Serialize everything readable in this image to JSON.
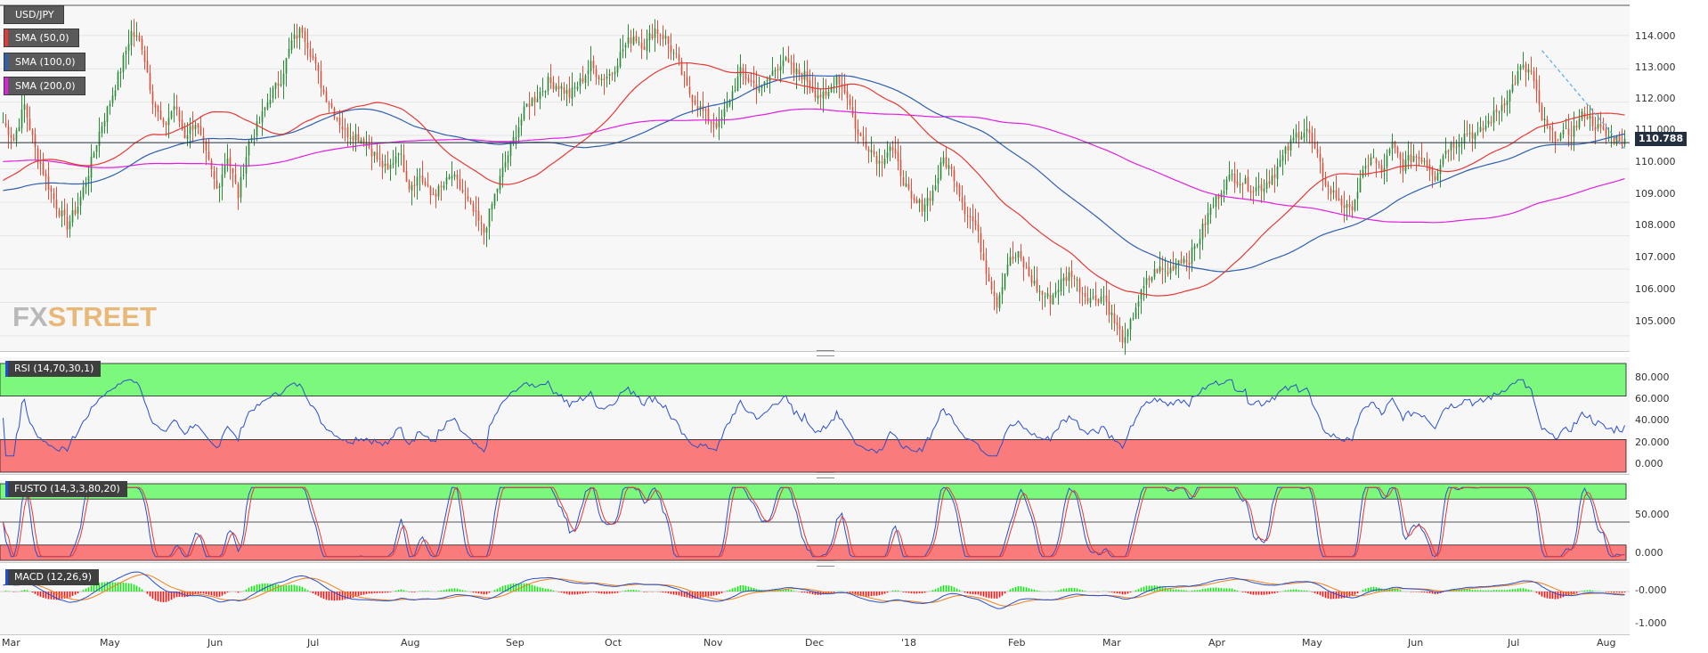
{
  "chart_data": {
    "type": "candlestick",
    "symbol": "USD/JPY",
    "last_price": "110.788",
    "price_axis": {
      "ticks": [
        "114.000",
        "113.000",
        "112.000",
        "111.000",
        "110.000",
        "109.000",
        "108.000",
        "107.000",
        "106.000",
        "105.000"
      ],
      "ylim": [
        104.6,
        114.9
      ]
    },
    "overlays": [
      {
        "name": "SMA (50,0)",
        "color": "#e53935"
      },
      {
        "name": "SMA (100,0)",
        "color": "#2f5fae"
      },
      {
        "name": "SMA (200,0)",
        "color": "#e020e0"
      }
    ],
    "price_waypoints": [
      [
        0,
        111.4
      ],
      [
        4,
        110.9
      ],
      [
        8,
        111.9
      ],
      [
        12,
        110.6
      ],
      [
        16,
        109.7
      ],
      [
        20,
        108.9
      ],
      [
        24,
        108.3
      ],
      [
        28,
        108.9
      ],
      [
        32,
        109.9
      ],
      [
        36,
        111.1
      ],
      [
        40,
        112.0
      ],
      [
        44,
        113.0
      ],
      [
        48,
        114.1
      ],
      [
        52,
        113.7
      ],
      [
        56,
        112.1
      ],
      [
        60,
        111.2
      ],
      [
        64,
        111.9
      ],
      [
        68,
        111.0
      ],
      [
        72,
        111.4
      ],
      [
        76,
        110.4
      ],
      [
        80,
        109.4
      ],
      [
        84,
        110.4
      ],
      [
        88,
        109.2
      ],
      [
        92,
        110.8
      ],
      [
        96,
        111.4
      ],
      [
        100,
        112.2
      ],
      [
        104,
        112.7
      ],
      [
        108,
        113.8
      ],
      [
        112,
        114.2
      ],
      [
        116,
        113.3
      ],
      [
        120,
        112.3
      ],
      [
        124,
        111.7
      ],
      [
        128,
        111.1
      ],
      [
        132,
        111.0
      ],
      [
        136,
        110.8
      ],
      [
        140,
        110.3
      ],
      [
        144,
        109.9
      ],
      [
        148,
        110.6
      ],
      [
        152,
        109.5
      ],
      [
        156,
        109.8
      ],
      [
        160,
        109.2
      ],
      [
        164,
        109.4
      ],
      [
        168,
        109.8
      ],
      [
        172,
        109.3
      ],
      [
        176,
        108.7
      ],
      [
        180,
        108.1
      ],
      [
        184,
        109.2
      ],
      [
        188,
        110.2
      ],
      [
        192,
        111.1
      ],
      [
        196,
        111.9
      ],
      [
        200,
        112.2
      ],
      [
        204,
        112.6
      ],
      [
        208,
        112.5
      ],
      [
        212,
        112.2
      ],
      [
        216,
        112.6
      ],
      [
        220,
        113.1
      ],
      [
        224,
        112.7
      ],
      [
        228,
        112.9
      ],
      [
        232,
        113.6
      ],
      [
        236,
        114.0
      ],
      [
        240,
        113.7
      ],
      [
        244,
        114.2
      ],
      [
        248,
        113.9
      ],
      [
        252,
        113.3
      ],
      [
        256,
        112.4
      ],
      [
        260,
        111.9
      ],
      [
        264,
        111.5
      ],
      [
        268,
        111.3
      ],
      [
        272,
        112.1
      ],
      [
        276,
        112.9
      ],
      [
        280,
        112.6
      ],
      [
        284,
        112.4
      ],
      [
        288,
        112.9
      ],
      [
        292,
        113.3
      ],
      [
        296,
        112.9
      ],
      [
        300,
        112.8
      ],
      [
        304,
        112.3
      ],
      [
        308,
        112.1
      ],
      [
        312,
        112.8
      ],
      [
        316,
        112.2
      ],
      [
        320,
        111.0
      ],
      [
        324,
        110.7
      ],
      [
        328,
        110.2
      ],
      [
        332,
        110.7
      ],
      [
        336,
        109.9
      ],
      [
        340,
        109.0
      ],
      [
        344,
        108.9
      ],
      [
        348,
        109.3
      ],
      [
        352,
        110.3
      ],
      [
        356,
        109.8
      ],
      [
        360,
        108.8
      ],
      [
        364,
        108.3
      ],
      [
        368,
        107.0
      ],
      [
        372,
        106.0
      ],
      [
        376,
        107.2
      ],
      [
        380,
        107.4
      ],
      [
        384,
        106.8
      ],
      [
        388,
        106.3
      ],
      [
        392,
        106.1
      ],
      [
        396,
        106.6
      ],
      [
        400,
        106.9
      ],
      [
        404,
        106.3
      ],
      [
        408,
        106.1
      ],
      [
        412,
        106.2
      ],
      [
        416,
        105.4
      ],
      [
        420,
        104.8
      ],
      [
        424,
        105.9
      ],
      [
        428,
        106.6
      ],
      [
        432,
        107.0
      ],
      [
        436,
        106.9
      ],
      [
        440,
        107.3
      ],
      [
        444,
        107.3
      ],
      [
        448,
        108.0
      ],
      [
        452,
        108.8
      ],
      [
        456,
        109.4
      ],
      [
        460,
        109.8
      ],
      [
        464,
        109.6
      ],
      [
        468,
        109.4
      ],
      [
        472,
        109.5
      ],
      [
        476,
        109.9
      ],
      [
        480,
        110.5
      ],
      [
        484,
        111.0
      ],
      [
        488,
        111.2
      ],
      [
        492,
        110.3
      ],
      [
        496,
        109.4
      ],
      [
        500,
        109.1
      ],
      [
        504,
        108.7
      ],
      [
        508,
        109.6
      ],
      [
        512,
        110.4
      ],
      [
        516,
        109.9
      ],
      [
        520,
        110.7
      ],
      [
        524,
        110.1
      ],
      [
        528,
        110.4
      ],
      [
        532,
        110.3
      ],
      [
        536,
        109.8
      ],
      [
        540,
        110.6
      ],
      [
        544,
        110.8
      ],
      [
        548,
        111.1
      ],
      [
        552,
        111.0
      ],
      [
        556,
        111.4
      ],
      [
        560,
        111.8
      ],
      [
        564,
        112.3
      ],
      [
        568,
        113.0
      ],
      [
        572,
        112.9
      ],
      [
        576,
        111.5
      ],
      [
        580,
        111.0
      ],
      [
        584,
        111.0
      ],
      [
        588,
        111.2
      ],
      [
        592,
        111.7
      ],
      [
        596,
        111.3
      ],
      [
        600,
        111.0
      ],
      [
        604,
        110.9
      ],
      [
        607,
        110.8
      ]
    ],
    "rsi": {
      "label": "RSI (14,70,30,1)",
      "ticks": [
        "80.000",
        "60.000",
        "40.000",
        "20.000",
        "0.000"
      ],
      "overbought": 70,
      "oversold": 30
    },
    "stochastic": {
      "label": "FUSTO (14,3,3,80,20)",
      "ticks": [
        "50.000",
        "0.000"
      ],
      "overbought": 80,
      "oversold": 20
    },
    "macd": {
      "label": "MACD (12,26,9)",
      "ticks": [
        "-0.000",
        "-1.000"
      ]
    },
    "x_axis_labels": [
      "Mar",
      "May",
      "Jun",
      "Jul",
      "Aug",
      "Sep",
      "Oct",
      "Nov",
      "Dec",
      "'18",
      "Feb",
      "Mar",
      "Apr",
      "May",
      "Jun",
      "Jul",
      "Aug"
    ]
  },
  "branding": {
    "logo_left": "FX",
    "logo_right": "STREET"
  }
}
